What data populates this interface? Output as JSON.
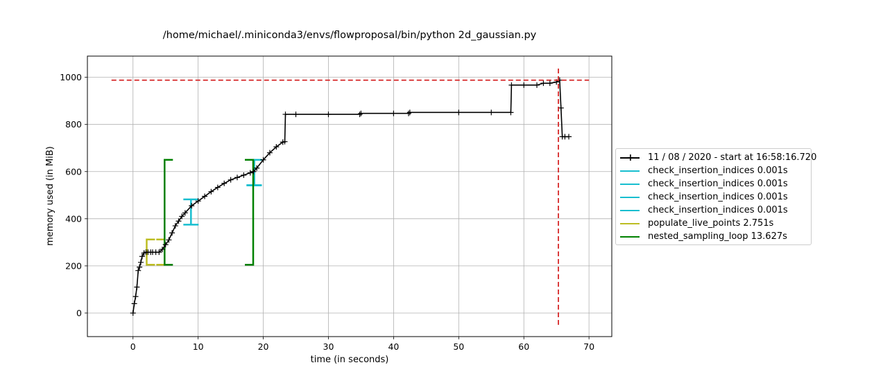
{
  "chart_data": {
    "type": "line",
    "title": "/home/michael/.miniconda3/envs/flowproposal/bin/python 2d_gaussian.py",
    "xlabel": "time (in seconds)",
    "ylabel": "memory used (in MiB)",
    "xlim": [
      -7,
      73.5
    ],
    "ylim": [
      -100,
      1090
    ],
    "xticks": [
      0,
      10,
      20,
      30,
      40,
      50,
      60,
      70
    ],
    "yticks": [
      0,
      200,
      400,
      600,
      800,
      1000
    ],
    "xtick_labels": [
      "0",
      "10",
      "20",
      "30",
      "40",
      "50",
      "60",
      "70"
    ],
    "ytick_labels": [
      "0",
      "200",
      "400",
      "600",
      "800",
      "1000"
    ],
    "grid": true,
    "legend_position": "center-right outside",
    "series": [
      {
        "name": "11 / 08 / 2020 - start at 16:58:16.720",
        "color": "#000000",
        "marker": "+",
        "x": [
          0,
          0.2,
          0.4,
          0.6,
          0.8,
          1.0,
          1.2,
          1.4,
          1.7,
          2.0,
          2.3,
          2.7,
          3.0,
          3.5,
          4.0,
          4.5,
          5.0,
          5.5,
          6.0,
          6.5,
          7.0,
          7.5,
          8.0,
          9.0,
          10.0,
          11.0,
          12.0,
          13.0,
          14.0,
          15.0,
          16.0,
          17.0,
          18.0,
          18.5,
          19.0,
          20.0,
          21.0,
          22.0,
          23.0,
          23.3,
          23.4,
          25.0,
          30.0,
          34.8,
          35.0,
          40.0,
          42.3,
          42.5,
          50.0,
          55.0,
          58.0,
          58.1,
          60.0,
          62.0,
          63.0,
          64.0,
          65.0,
          65.5,
          65.7,
          65.9,
          66.3,
          66.9
        ],
        "y": [
          0,
          40,
          70,
          110,
          180,
          195,
          215,
          240,
          255,
          258,
          258,
          258,
          258,
          258,
          258,
          270,
          290,
          310,
          340,
          370,
          390,
          410,
          425,
          455,
          475,
          495,
          515,
          533,
          550,
          565,
          575,
          585,
          595,
          600,
          615,
          650,
          680,
          705,
          725,
          727,
          843,
          843,
          843,
          843,
          847,
          847,
          847,
          851,
          851,
          851,
          851,
          967,
          967,
          967,
          975,
          975,
          980,
          988,
          870,
          748,
          748,
          748
        ]
      }
    ],
    "function_markers": [
      {
        "name": "check_insertion_indices 0.001s",
        "color": "#17becf",
        "x_start": 8.9,
        "x_end": 8.9,
        "y_low": 375,
        "y_high": 482
      },
      {
        "name": "check_insertion_indices 0.001s",
        "color": "#17becf",
        "x_start": 18.6,
        "x_end": 18.6,
        "y_low": 542,
        "y_high": 650
      },
      {
        "name": "check_insertion_indices 0.001s",
        "color": "#17becf",
        "x_start": 18.6,
        "x_end": 18.6,
        "y_low": 542,
        "y_high": 650
      },
      {
        "name": "check_insertion_indices 0.001s",
        "color": "#17becf",
        "x_start": 18.6,
        "x_end": 18.6,
        "y_low": 542,
        "y_high": 650
      },
      {
        "name": "populate_live_points 2.751s",
        "color": "#bcbd22",
        "x_start": 2.1,
        "x_end": 4.85,
        "y_low": 205,
        "y_high": 312
      },
      {
        "name": "nested_sampling_loop 13.627s",
        "color": "#008000",
        "x_start": 4.85,
        "x_end": 18.45,
        "y_low": 205,
        "y_high": 650
      }
    ],
    "max_memory_line": {
      "value": 988,
      "x_from": -3.3,
      "x_to": 70,
      "color": "#d62728"
    },
    "max_time_line": {
      "value": 65.3,
      "y_from": -50,
      "y_to": 1040,
      "color": "#d62728"
    }
  },
  "legend": {
    "entries": [
      {
        "label": "11 / 08 / 2020 - start at 16:58:16.720",
        "color": "#000000",
        "marker": "+"
      },
      {
        "label": "check_insertion_indices 0.001s",
        "color": "#17becf",
        "marker": ""
      },
      {
        "label": "check_insertion_indices 0.001s",
        "color": "#17becf",
        "marker": ""
      },
      {
        "label": "check_insertion_indices 0.001s",
        "color": "#17becf",
        "marker": ""
      },
      {
        "label": "check_insertion_indices 0.001s",
        "color": "#17becf",
        "marker": ""
      },
      {
        "label": "populate_live_points 2.751s",
        "color": "#bcbd22",
        "marker": ""
      },
      {
        "label": "nested_sampling_loop 13.627s",
        "color": "#008000",
        "marker": ""
      }
    ]
  }
}
